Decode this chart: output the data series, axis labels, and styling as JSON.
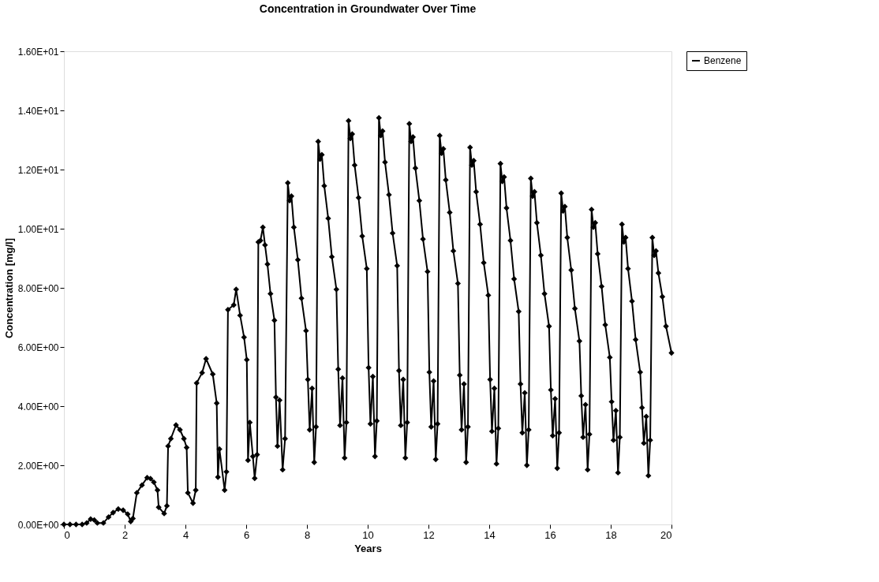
{
  "chart_data": {
    "type": "line",
    "title": "Concentration in Groundwater Over Time",
    "xlabel": "Years",
    "ylabel": "Concentration [mg/l]",
    "xlim": [
      0,
      20
    ],
    "xticks": [
      0,
      2,
      4,
      6,
      8,
      10,
      12,
      14,
      16,
      18,
      20
    ],
    "ylim": [
      0,
      16
    ],
    "yticks": [
      {
        "value": 0,
        "label": "0.00E+00"
      },
      {
        "value": 2,
        "label": "2.00E+00"
      },
      {
        "value": 4,
        "label": "4.00E+00"
      },
      {
        "value": 6,
        "label": "6.00E+00"
      },
      {
        "value": 8,
        "label": "8.00E+00"
      },
      {
        "value": 10,
        "label": "1.00E+01"
      },
      {
        "value": 12,
        "label": "1.20E+01"
      },
      {
        "value": 14,
        "label": "1.40E+01"
      },
      {
        "value": 16,
        "label": "1.60E+01"
      }
    ],
    "grid": false,
    "legend": "right",
    "marker": "diamond",
    "line_style": "solid",
    "series": [
      {
        "name": "Benzene",
        "color": "#000000",
        "x": [
          0,
          0.2,
          0.4,
          0.6,
          0.75,
          0.88,
          1.0,
          1.1,
          1.3,
          1.47,
          1.62,
          1.79,
          1.95,
          2.1,
          2.2,
          2.27,
          2.4,
          2.57,
          2.74,
          2.85,
          2.96,
          3.08,
          3.12,
          3.3,
          3.39,
          3.43,
          3.52,
          3.69,
          3.82,
          3.95,
          4.04,
          4.08,
          4.25,
          4.34,
          4.37,
          4.55,
          4.68,
          4.9,
          5.03,
          5.07,
          5.12,
          5.29,
          5.35,
          5.4,
          5.59,
          5.67,
          5.8,
          5.93,
          6.02,
          6.06,
          6.12,
          6.22,
          6.28,
          6.36,
          6.4,
          6.47,
          6.55,
          6.62,
          6.7,
          6.8,
          6.93,
          6.98,
          7.03,
          7.1,
          7.2,
          7.28,
          7.37,
          7.43,
          7.49,
          7.57,
          7.7,
          7.82,
          7.97,
          8.03,
          8.09,
          8.17,
          8.24,
          8.3,
          8.37,
          8.43,
          8.49,
          8.57,
          8.7,
          8.82,
          8.97,
          9.03,
          9.09,
          9.17,
          9.24,
          9.3,
          9.37,
          9.43,
          9.49,
          9.57,
          9.7,
          9.82,
          9.97,
          10.03,
          10.09,
          10.17,
          10.24,
          10.3,
          10.37,
          10.43,
          10.49,
          10.57,
          10.7,
          10.82,
          10.97,
          11.03,
          11.09,
          11.17,
          11.24,
          11.3,
          11.37,
          11.43,
          11.49,
          11.57,
          11.7,
          11.82,
          11.97,
          12.03,
          12.09,
          12.17,
          12.24,
          12.3,
          12.37,
          12.43,
          12.49,
          12.57,
          12.7,
          12.82,
          12.97,
          13.03,
          13.09,
          13.17,
          13.24,
          13.3,
          13.37,
          13.43,
          13.49,
          13.57,
          13.7,
          13.82,
          13.97,
          14.03,
          14.09,
          14.17,
          14.24,
          14.3,
          14.37,
          14.43,
          14.49,
          14.57,
          14.7,
          14.82,
          14.97,
          15.03,
          15.09,
          15.17,
          15.24,
          15.3,
          15.37,
          15.43,
          15.49,
          15.57,
          15.7,
          15.82,
          15.97,
          16.03,
          16.09,
          16.17,
          16.24,
          16.3,
          16.37,
          16.43,
          16.49,
          16.57,
          16.7,
          16.82,
          16.97,
          17.03,
          17.09,
          17.17,
          17.24,
          17.3,
          17.37,
          17.43,
          17.49,
          17.57,
          17.7,
          17.82,
          17.97,
          18.03,
          18.09,
          18.17,
          18.24,
          18.3,
          18.37,
          18.43,
          18.49,
          18.57,
          18.7,
          18.82,
          18.97,
          19.03,
          19.09,
          19.17,
          19.24,
          19.3,
          19.37,
          19.43,
          19.49,
          19.57,
          19.7,
          19.82,
          20.0
        ],
        "values": [
          0,
          0,
          0,
          0,
          0.05,
          0.18,
          0.15,
          0.05,
          0.05,
          0.25,
          0.4,
          0.52,
          0.48,
          0.35,
          0.1,
          0.2,
          1.07,
          1.33,
          1.58,
          1.55,
          1.43,
          1.16,
          0.58,
          0.37,
          0.63,
          2.65,
          2.9,
          3.36,
          3.2,
          2.9,
          2.6,
          1.07,
          0.72,
          1.16,
          4.78,
          5.13,
          5.6,
          5.08,
          4.1,
          1.6,
          2.55,
          1.16,
          1.78,
          7.26,
          7.42,
          7.95,
          7.07,
          6.33,
          5.57,
          2.17,
          3.45,
          2.3,
          1.56,
          2.36,
          9.55,
          9.6,
          10.05,
          9.45,
          8.8,
          7.8,
          6.9,
          4.3,
          2.65,
          4.2,
          1.85,
          2.9,
          11.55,
          10.95,
          11.1,
          10.05,
          8.95,
          7.65,
          6.55,
          4.9,
          3.2,
          4.6,
          2.1,
          3.3,
          12.95,
          12.35,
          12.5,
          11.45,
          10.35,
          9.05,
          7.95,
          5.25,
          3.35,
          4.95,
          2.25,
          3.45,
          13.65,
          13.05,
          13.2,
          12.15,
          11.05,
          9.75,
          8.65,
          5.3,
          3.4,
          5.0,
          2.3,
          3.5,
          13.75,
          13.15,
          13.3,
          12.25,
          11.15,
          9.85,
          8.75,
          5.2,
          3.35,
          4.9,
          2.25,
          3.45,
          13.55,
          12.95,
          13.1,
          12.05,
          10.95,
          9.65,
          8.55,
          5.15,
          3.3,
          4.85,
          2.2,
          3.4,
          13.15,
          12.55,
          12.7,
          11.65,
          10.55,
          9.25,
          8.15,
          5.05,
          3.2,
          4.75,
          2.1,
          3.3,
          12.75,
          12.15,
          12.3,
          11.25,
          10.15,
          8.85,
          7.75,
          4.9,
          3.15,
          4.6,
          2.05,
          3.25,
          12.2,
          11.6,
          11.75,
          10.7,
          9.6,
          8.3,
          7.2,
          4.75,
          3.1,
          4.45,
          2.0,
          3.2,
          11.7,
          11.1,
          11.25,
          10.2,
          9.1,
          7.8,
          6.7,
          4.55,
          3.0,
          4.25,
          1.9,
          3.1,
          11.2,
          10.6,
          10.75,
          9.7,
          8.6,
          7.3,
          6.2,
          4.35,
          2.95,
          4.05,
          1.85,
          3.05,
          10.65,
          10.05,
          10.2,
          9.15,
          8.05,
          6.75,
          5.65,
          4.15,
          2.85,
          3.85,
          1.75,
          2.95,
          10.15,
          9.55,
          9.7,
          8.65,
          7.55,
          6.25,
          5.15,
          3.95,
          2.75,
          3.65,
          1.65,
          2.85,
          9.7,
          9.1,
          9.25,
          8.5,
          7.7,
          6.7,
          5.8
        ]
      }
    ]
  }
}
